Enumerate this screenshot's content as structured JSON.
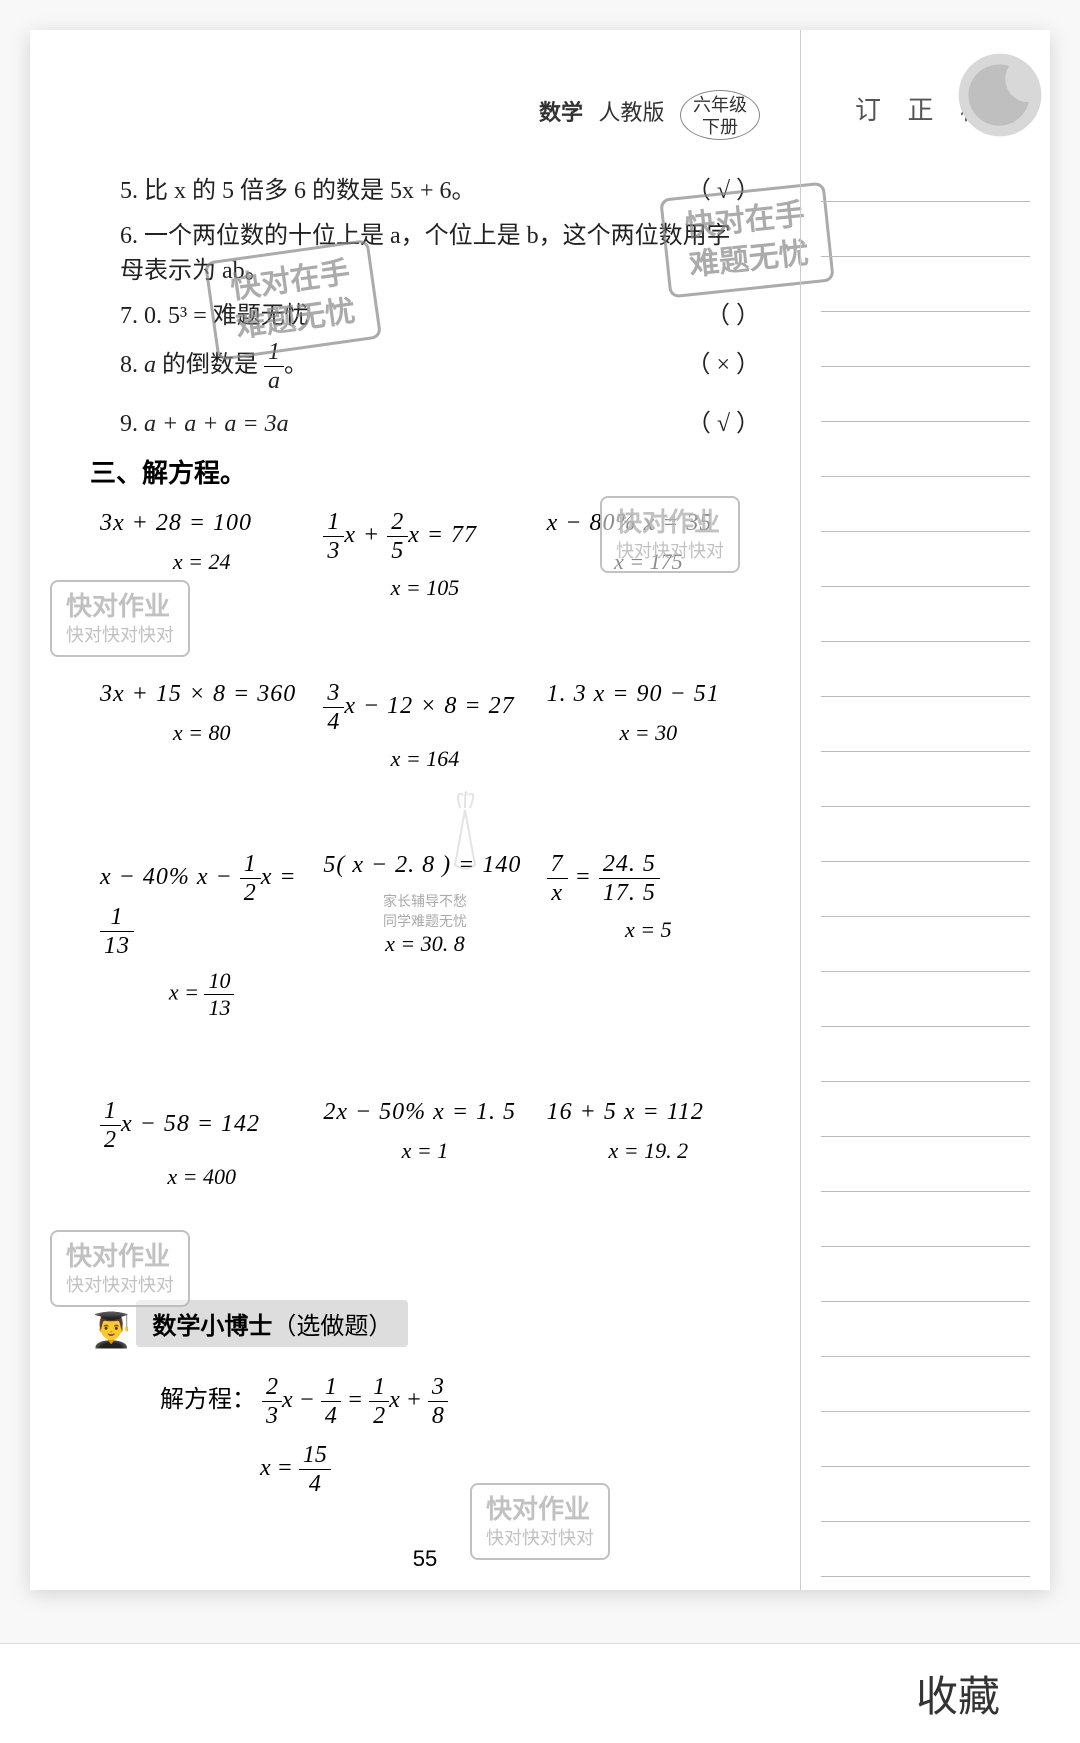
{
  "header": {
    "subject": "数学",
    "version": "人教版",
    "grade": "六年级",
    "volume": "下册"
  },
  "side": {
    "title": "订 正 栏",
    "line_count": 26
  },
  "tf": {
    "items": [
      {
        "num": "5.",
        "text": "比 x 的 5 倍多 6 的数是 5x + 6。",
        "mark": "（ √ ）"
      },
      {
        "num": "6.",
        "text": "一个两位数的十位上是 a，个位上是 b，这个两位数用字母表示为 ab。",
        "mark": ""
      },
      {
        "num": "7.",
        "text": "0. 5³ = 难题无忧",
        "mark": "（    ）"
      },
      {
        "num": "8.",
        "text": "a 的倒数是 1/a。",
        "mark": "（ × ）"
      },
      {
        "num": "9.",
        "text": "a + a + a = 3a",
        "mark": "（ √ ）"
      }
    ]
  },
  "section_title": "三、解方程。",
  "equations": [
    [
      {
        "problem": "3x + 28 = 100",
        "answer": "x = 24"
      },
      {
        "problem_html": "frac13x + frac25x = 77",
        "answer": "x = 105"
      },
      {
        "problem": "x − 80% x = 35",
        "answer": "x = 175"
      }
    ],
    [
      {
        "problem": "3x + 15 × 8 = 360",
        "answer": "x = 80"
      },
      {
        "problem_html": "frac34x − 12 × 8 = 27",
        "answer": "x = 164"
      },
      {
        "problem": "1. 3 x = 90 − 51",
        "answer": "x = 30"
      }
    ],
    [
      {
        "problem_html": "x − 40% x − frac12x = frac1_13",
        "answer_html": "x = frac10_13"
      },
      {
        "problem": "5( x − 2. 8 ) = 140",
        "sub1": "家长辅导不愁",
        "sub2": "同学难题无忧",
        "answer": "x = 30. 8"
      },
      {
        "problem_html": "frac7x = frac24.5_17.5",
        "answer": "x = 5"
      }
    ],
    [
      {
        "problem_html": "frac12x − 58 = 142",
        "answer": "x = 400"
      },
      {
        "problem": "2x − 50% x = 1. 5",
        "answer": "x = 1"
      },
      {
        "problem": "16 + 5 x = 112",
        "answer": "x = 19. 2"
      }
    ]
  ],
  "bonus": {
    "title": "数学小博士",
    "paren": "（选做题）",
    "label": "解方程：",
    "problem_html": "frac23x − frac14 = frac12x + frac38",
    "answer_html": "x = frac15_4"
  },
  "page_num": "55",
  "stamps": {
    "text1": "快对在手",
    "text2": "难题无忧"
  },
  "wm": {
    "l1": "快对作业",
    "l2": "快对快对快对"
  },
  "bottom": {
    "collect": "收藏"
  },
  "colors": {
    "page_bg": "#f8f8f8",
    "paper": "#ffffff",
    "text": "#222222",
    "rule": "#bbbbbb",
    "stamp": "#888888",
    "wm_border": "#bbbbbb"
  }
}
